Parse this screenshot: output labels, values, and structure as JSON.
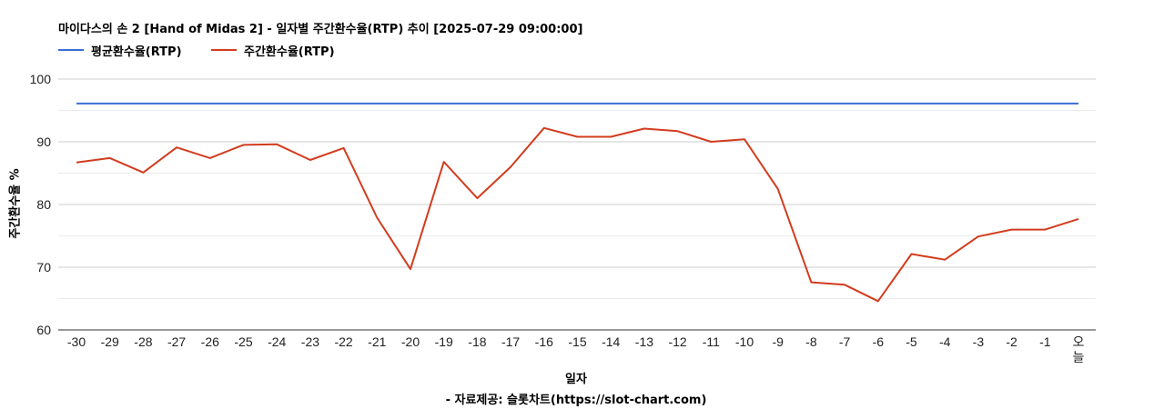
{
  "chart_data": {
    "type": "line",
    "title": "마이다스의 손 2 [Hand of Midas 2] - 일자별 주간환수율(RTP) 추이 [2025-07-29 09:00:00]",
    "xlabel": "일자",
    "ylabel": "주간환수율 %",
    "source": "- 자료제공: 슬롯차트(https://slot-chart.com)",
    "ylim": [
      60,
      100
    ],
    "yticks": [
      "60",
      "70",
      "80",
      "90",
      "100"
    ],
    "grid": true,
    "legend_position": "top-left",
    "categories": [
      "-30",
      "-29",
      "-28",
      "-27",
      "-26",
      "-25",
      "-24",
      "-23",
      "-22",
      "-21",
      "-20",
      "-19",
      "-18",
      "-17",
      "-16",
      "-15",
      "-14",
      "-13",
      "-12",
      "-11",
      "-10",
      "-9",
      "-8",
      "-7",
      "-6",
      "-5",
      "-4",
      "-3",
      "-2",
      "-1",
      "오늘"
    ],
    "series": [
      {
        "name": "평균환수율(RTP)",
        "color": "#3b6fd4",
        "values": [
          96.1,
          96.1,
          96.1,
          96.1,
          96.1,
          96.1,
          96.1,
          96.1,
          96.1,
          96.1,
          96.1,
          96.1,
          96.1,
          96.1,
          96.1,
          96.1,
          96.1,
          96.1,
          96.1,
          96.1,
          96.1,
          96.1,
          96.1,
          96.1,
          96.1,
          96.1,
          96.1,
          96.1,
          96.1,
          96.1,
          96.1
        ]
      },
      {
        "name": "주간환수율(RTP)",
        "color": "#d23c1e",
        "values": [
          86.7,
          87.4,
          85.1,
          89.1,
          87.4,
          89.5,
          89.6,
          87.1,
          89.0,
          77.9,
          69.7,
          86.8,
          81.0,
          86.0,
          92.2,
          90.8,
          90.8,
          92.1,
          91.7,
          90.0,
          90.4,
          82.5,
          67.6,
          67.2,
          64.6,
          72.1,
          71.2,
          74.9,
          76.0,
          76.0,
          77.7
        ]
      }
    ]
  }
}
